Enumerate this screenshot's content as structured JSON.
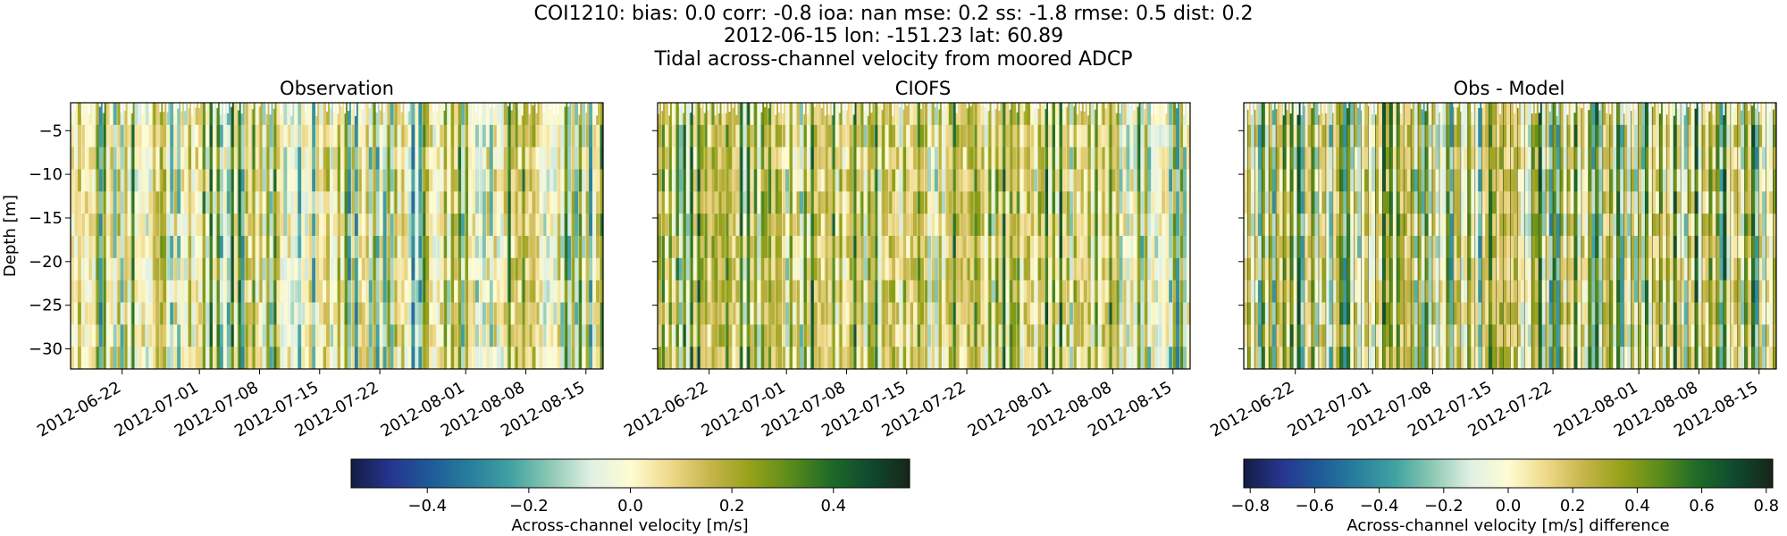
{
  "figure": {
    "title_lines": [
      "COI1210: bias: 0.0  corr: -0.8  ioa: nan  mse: 0.2  ss: -1.8  rmse: 0.5  dist: 0.2",
      "2012-06-15 lon: -151.23 lat: 60.89",
      "Tidal across-channel velocity from moored ADCP"
    ]
  },
  "chart_data": [
    {
      "type": "heatmap",
      "title": "Observation",
      "ylabel": "Depth [m]",
      "ylim": [
        -32.3,
        -1.8
      ],
      "y_ticks": [
        -5,
        -10,
        -15,
        -20,
        -25,
        -30
      ],
      "x_ticks": [
        "2012-06-22",
        "2012-07-01",
        "2012-07-08",
        "2012-07-15",
        "2012-07-22",
        "2012-08-01",
        "2012-08-08",
        "2012-08-15"
      ],
      "xlim": [
        "2012-06-16",
        "2012-08-17"
      ],
      "colormap": "delta",
      "clim": [
        -0.55,
        0.55
      ]
    },
    {
      "type": "heatmap",
      "title": "CIOFS",
      "ylim": [
        -32.3,
        -1.8
      ],
      "y_ticks": [
        -5,
        -10,
        -15,
        -20,
        -25,
        -30
      ],
      "x_ticks": [
        "2012-06-22",
        "2012-07-01",
        "2012-07-08",
        "2012-07-15",
        "2012-07-22",
        "2012-08-01",
        "2012-08-08",
        "2012-08-15"
      ],
      "xlim": [
        "2012-06-16",
        "2012-08-17"
      ],
      "colormap": "delta",
      "clim": [
        -0.55,
        0.55
      ]
    },
    {
      "type": "heatmap",
      "title": "Obs - Model",
      "ylim": [
        -32.3,
        -1.8
      ],
      "y_ticks": [
        -5,
        -10,
        -15,
        -20,
        -25,
        -30
      ],
      "x_ticks": [
        "2012-06-22",
        "2012-07-01",
        "2012-07-08",
        "2012-07-15",
        "2012-07-22",
        "2012-08-01",
        "2012-08-08",
        "2012-08-15"
      ],
      "xlim": [
        "2012-06-16",
        "2012-08-17"
      ],
      "colormap": "delta",
      "clim": [
        -0.82,
        0.82
      ]
    }
  ],
  "colorbars": [
    {
      "label": "Across-channel velocity [m/s]",
      "range": [
        -0.55,
        0.55
      ],
      "ticks": [
        -0.4,
        -0.2,
        0.0,
        0.2,
        0.4
      ],
      "tick_labels": [
        "−0.4",
        "−0.2",
        "0.0",
        "0.2",
        "0.4"
      ]
    },
    {
      "label": "Across-channel velocity [m/s] difference",
      "range": [
        -0.82,
        0.82
      ],
      "ticks": [
        -0.8,
        -0.6,
        -0.4,
        -0.2,
        0.0,
        0.2,
        0.4,
        0.6,
        0.8
      ],
      "tick_labels": [
        "−0.8",
        "−0.6",
        "−0.4",
        "−0.2",
        "0.0",
        "0.2",
        "0.4",
        "0.6",
        "0.8"
      ]
    }
  ],
  "colormap_stops": [
    "#141d43",
    "#26358f",
    "#1e5b98",
    "#287f9d",
    "#40a2a2",
    "#8ec9b3",
    "#dff0e4",
    "#fefcd2",
    "#efd98b",
    "#c6b54a",
    "#96a11a",
    "#5b8c1b",
    "#1f6b27",
    "#0f4a2f",
    "#172619"
  ]
}
